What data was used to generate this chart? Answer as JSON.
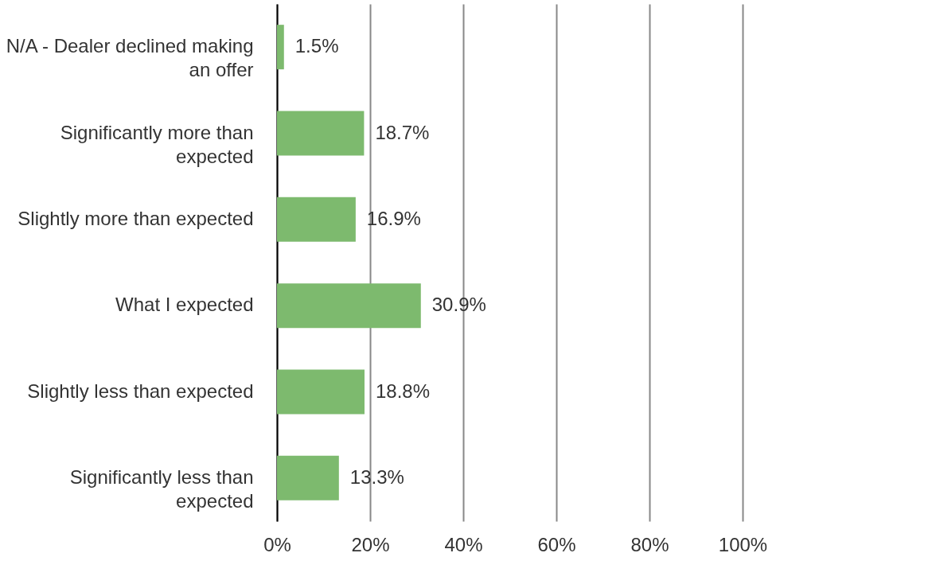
{
  "chart_data": {
    "type": "bar",
    "orientation": "horizontal",
    "categories": [
      "N/A - Dealer declined making an offer",
      "Significantly more than expected",
      "Slightly more than expected",
      "What I expected",
      "Slightly less than expected",
      "Significantly less than expected"
    ],
    "values": [
      1.5,
      18.7,
      16.9,
      30.9,
      18.8,
      13.3
    ],
    "value_labels": [
      "1.5%",
      "18.7%",
      "16.9%",
      "30.9%",
      "18.8%",
      "13.3%"
    ],
    "color": "#7dba6e",
    "xlim": [
      0,
      100
    ],
    "xticks": [
      {
        "value": 0,
        "label": "0%"
      },
      {
        "value": 20,
        "label": "20%"
      },
      {
        "value": 40,
        "label": "40%"
      },
      {
        "value": 60,
        "label": "60%"
      },
      {
        "value": 80,
        "label": "80%"
      },
      {
        "value": 100,
        "label": "100%"
      }
    ],
    "grid": "x"
  }
}
